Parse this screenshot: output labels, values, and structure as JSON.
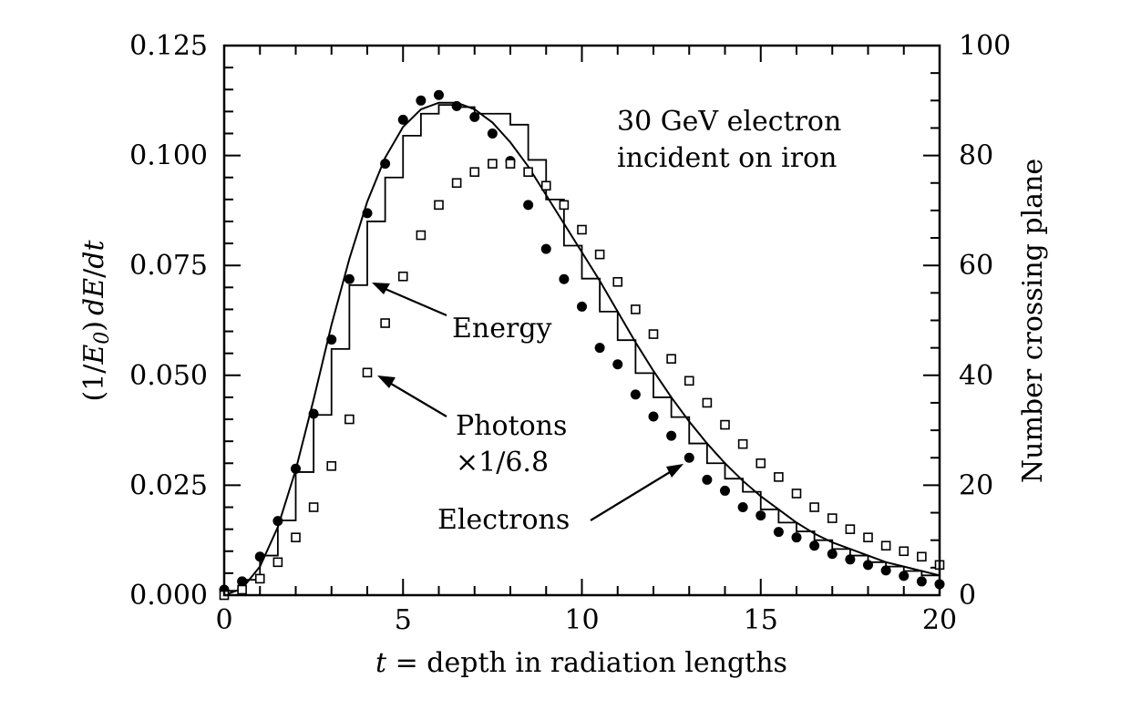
{
  "chart_data": {
    "type": "scatter",
    "xlabel": "t = depth in radiation lengths",
    "xlabel_italic": "t",
    "xlabel_rest": " = depth in radiation lengths",
    "ylabel": "(1/E0) dE/dt",
    "ylabel_right": "Number crossing plane",
    "xlim": [
      0,
      20
    ],
    "ylim": [
      0,
      0.125
    ],
    "ylim_right": [
      0,
      100
    ],
    "x_ticks": [
      "0",
      "5",
      "10",
      "15",
      "20"
    ],
    "y_ticks": [
      "0.000",
      "0.025",
      "0.050",
      "0.075",
      "0.100",
      "0.125"
    ],
    "y_ticks_right": [
      "0",
      "20",
      "40",
      "60",
      "80",
      "100"
    ],
    "annotation_box": [
      "30 GeV electron",
      "incident on iron"
    ],
    "labels": {
      "energy": "Energy",
      "photons_line1": "Photons",
      "photons_line2": "×1/6.8",
      "electrons": "Electrons"
    },
    "series": [
      {
        "name": "Energy",
        "kind": "histogram",
        "axis": "left",
        "bin_width": 0.5,
        "bin_starts": [
          0,
          0.5,
          1,
          1.5,
          2,
          2.5,
          3,
          3.5,
          4,
          4.5,
          5,
          5.5,
          6,
          6.5,
          7,
          7.5,
          8,
          8.5,
          9,
          9.5,
          10,
          10.5,
          11,
          11.5,
          12,
          12.5,
          13,
          13.5,
          14,
          14.5,
          15,
          15.5,
          16,
          16.5,
          17,
          17.5,
          18,
          18.5,
          19,
          19.5
        ],
        "values": [
          0.001,
          0.0035,
          0.009,
          0.017,
          0.028,
          0.041,
          0.056,
          0.0705,
          0.085,
          0.095,
          0.1045,
          0.1095,
          0.1115,
          0.111,
          0.1095,
          0.1095,
          0.107,
          0.099,
          0.09,
          0.0795,
          0.072,
          0.0645,
          0.058,
          0.0505,
          0.045,
          0.0405,
          0.0345,
          0.03,
          0.0265,
          0.0235,
          0.0195,
          0.0165,
          0.0145,
          0.0125,
          0.0105,
          0.009,
          0.0075,
          0.0065,
          0.0055,
          0.0045
        ]
      },
      {
        "name": "Energy",
        "kind": "fit-curve",
        "axis": "left",
        "x": [
          0,
          0.5,
          1,
          1.5,
          2,
          2.5,
          3,
          3.5,
          4,
          4.5,
          5,
          5.5,
          6,
          6.5,
          7,
          7.5,
          8,
          8.5,
          9,
          9.5,
          10,
          10.5,
          11,
          11.5,
          12,
          12.5,
          13,
          13.5,
          14,
          14.5,
          15,
          15.5,
          16,
          16.5,
          17,
          17.5,
          18,
          18.5,
          19,
          19.5,
          20
        ],
        "values": [
          0,
          0.0015,
          0.0065,
          0.0155,
          0.0285,
          0.0445,
          0.0615,
          0.0765,
          0.0895,
          0.0995,
          0.1065,
          0.1105,
          0.112,
          0.112,
          0.1105,
          0.1075,
          0.103,
          0.0975,
          0.091,
          0.0845,
          0.078,
          0.0715,
          0.0645,
          0.0575,
          0.051,
          0.045,
          0.0395,
          0.0345,
          0.03,
          0.026,
          0.0225,
          0.0195,
          0.0165,
          0.014,
          0.012,
          0.0105,
          0.009,
          0.0075,
          0.0065,
          0.0055,
          0.0045
        ]
      },
      {
        "name": "Electrons",
        "kind": "points-filled-circle",
        "axis": "right",
        "x": [
          0,
          0.5,
          1,
          1.5,
          2,
          2.5,
          3,
          3.5,
          4,
          4.5,
          5,
          5.5,
          6,
          6.5,
          7,
          7.5,
          8,
          8.5,
          9,
          9.5,
          10,
          10.5,
          11,
          11.5,
          12,
          12.5,
          13,
          13.5,
          14,
          14.5,
          15,
          15.5,
          16,
          16.5,
          17,
          17.5,
          18,
          18.5,
          19,
          19.5,
          20
        ],
        "values": [
          1,
          2.5,
          7,
          13.5,
          23,
          33,
          46.5,
          57.5,
          69.5,
          78.5,
          86.5,
          90,
          91,
          89,
          87,
          84,
          79,
          71,
          63,
          57.5,
          52.5,
          45,
          42,
          36.5,
          32.5,
          29,
          25,
          21,
          19,
          16,
          14.5,
          11.5,
          10.5,
          9,
          7.5,
          6.5,
          5.5,
          4.5,
          3.5,
          2.5,
          2
        ]
      },
      {
        "name": "Photons ×1/6.8",
        "kind": "points-open-square",
        "axis": "right",
        "x": [
          0,
          0.5,
          1,
          1.5,
          2,
          2.5,
          3,
          3.5,
          4,
          4.5,
          5,
          5.5,
          6,
          6.5,
          7,
          7.5,
          8,
          8.5,
          9,
          9.5,
          10,
          10.5,
          11,
          11.5,
          12,
          12.5,
          13,
          13.5,
          14,
          14.5,
          15,
          15.5,
          16,
          16.5,
          17,
          17.5,
          18,
          18.5,
          19,
          19.5,
          20
        ],
        "values": [
          0,
          1,
          3,
          6,
          10.5,
          16,
          23.5,
          32,
          40.5,
          49.5,
          58,
          65.5,
          71,
          75,
          77,
          78.5,
          78.5,
          77,
          74.5,
          71,
          66.5,
          62,
          57,
          52,
          47.5,
          43,
          39,
          35,
          31,
          27.5,
          24,
          21.5,
          18.5,
          16,
          14,
          12,
          10.5,
          9,
          8,
          7,
          5.5
        ]
      }
    ]
  }
}
